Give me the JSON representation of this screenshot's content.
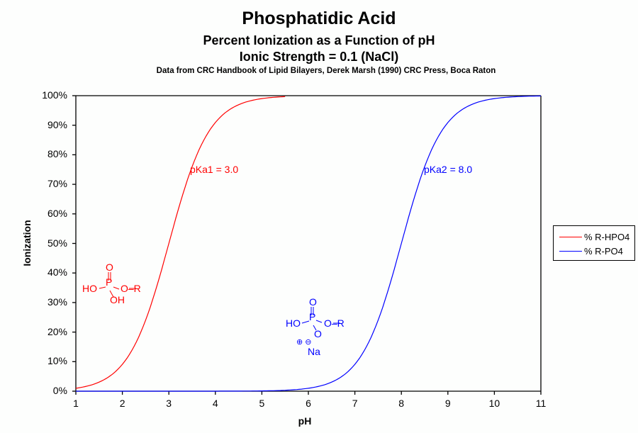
{
  "titles": {
    "main": "Phosphatidic Acid",
    "line2": "Percent Ionization  as a Function of pH",
    "line3": "Ionic  Strength = 0.1 (NaCl)",
    "source": "Data from CRC  Handbook of Lipid Bilayers, Derek Marsh (1990)  CRC Press,  Boca Raton"
  },
  "axes": {
    "xlabel": "pH",
    "ylabel": "Ionization",
    "xticks": [
      "1",
      "2",
      "3",
      "4",
      "5",
      "6",
      "7",
      "8",
      "9",
      "10",
      "11"
    ],
    "yticks": [
      "0%",
      "10%",
      "20%",
      "30%",
      "40%",
      "50%",
      "60%",
      "70%",
      "80%",
      "90%",
      "100%"
    ]
  },
  "annotations": {
    "pka1": "pKa1 = 3.0",
    "pka2": "pKa2 = 8.0"
  },
  "structures": {
    "hpo4": {
      "o_top": "O",
      "p": "P",
      "ho": "HO",
      "or": "O–R",
      "oh": "OH"
    },
    "po4": {
      "o_top": "O",
      "p": "P",
      "ho": "HO",
      "or": "O–R",
      "o_bottom": "O",
      "charges": "⊕ ⊖",
      "na": "Na"
    }
  },
  "legend": {
    "items": [
      {
        "label": "% R-HPO4",
        "color": "#ff0000"
      },
      {
        "label": "% R-PO4",
        "color": "#0000ff"
      }
    ]
  },
  "colors": {
    "series1": "#ff0000",
    "series2": "#0000ff",
    "axis": "#000000"
  },
  "chart_data": {
    "type": "line",
    "title": "Phosphatidic Acid — Percent Ionization as a Function of pH, Ionic Strength = 0.1 (NaCl)",
    "xlabel": "pH",
    "ylabel": "Ionization",
    "xlim": [
      1,
      11
    ],
    "ylim": [
      0,
      100
    ],
    "grid": false,
    "legend_position": "right",
    "x": [
      1,
      1.5,
      2,
      2.25,
      2.5,
      2.75,
      3,
      3.25,
      3.5,
      3.75,
      4,
      4.5,
      5,
      5.5,
      6,
      6.5,
      7,
      7.25,
      7.5,
      7.75,
      8,
      8.25,
      8.5,
      8.75,
      9,
      9.5,
      10,
      10.5,
      11
    ],
    "series": [
      {
        "name": "% R-HPO4",
        "color": "#ff0000",
        "pKa": 3.0,
        "values": [
          0.99,
          3.07,
          9.09,
          15.1,
          24.0,
          36.0,
          50.0,
          64.0,
          76.0,
          84.9,
          90.9,
          96.9,
          99.0,
          99.7,
          null,
          null,
          null,
          null,
          null,
          null,
          null,
          null,
          null,
          null,
          null,
          null,
          null,
          null,
          null
        ]
      },
      {
        "name": "% R-PO4",
        "color": "#0000ff",
        "pKa": 8.0,
        "values": [
          0,
          0,
          0,
          0,
          0,
          0,
          0,
          0,
          0,
          0,
          0,
          0,
          0.1,
          0.3,
          0.99,
          3.07,
          9.09,
          15.1,
          24.0,
          36.0,
          50.0,
          64.0,
          76.0,
          84.9,
          90.9,
          96.9,
          99.0,
          99.7,
          99.9
        ]
      }
    ],
    "annotations": [
      "pKa1 = 3.0",
      "pKa2 = 8.0"
    ]
  }
}
